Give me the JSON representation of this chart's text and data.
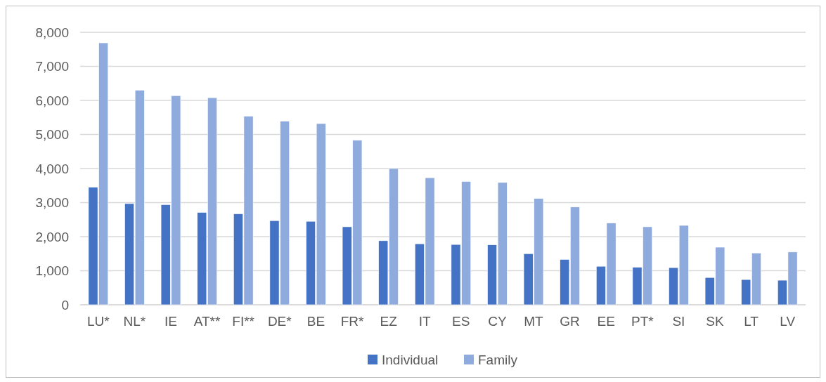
{
  "chart_data": {
    "type": "bar",
    "categories": [
      "LU*",
      "NL*",
      "IE",
      "AT**",
      "FI**",
      "DE*",
      "BE",
      "FR*",
      "EZ",
      "IT",
      "ES",
      "CY",
      "MT",
      "GR",
      "EE",
      "PT*",
      "SI",
      "SK",
      "LT",
      "LV"
    ],
    "series": [
      {
        "name": "Individual",
        "color": "#4472c4",
        "values": [
          3450,
          2970,
          2940,
          2710,
          2670,
          2470,
          2450,
          2290,
          1880,
          1790,
          1770,
          1760,
          1500,
          1330,
          1130,
          1100,
          1090,
          800,
          740,
          720
        ]
      },
      {
        "name": "Family",
        "color": "#8faadc",
        "values": [
          7690,
          6300,
          6140,
          6080,
          5540,
          5390,
          5320,
          4830,
          4000,
          3730,
          3620,
          3590,
          3120,
          2870,
          2400,
          2290,
          2330,
          1690,
          1520,
          1550
        ]
      }
    ],
    "ylim": [
      0,
      8000
    ],
    "yticks": [
      0,
      {
        "value": 1000,
        "label": "1,000"
      },
      {
        "value": 2000,
        "label": "2,000"
      },
      {
        "value": 3000,
        "label": "3,000"
      },
      {
        "value": 4000,
        "label": "4,000"
      },
      {
        "value": 5000,
        "label": "5,000"
      },
      {
        "value": 6000,
        "label": "6,000"
      },
      {
        "value": 7000,
        "label": "7,000"
      },
      {
        "value": 8000,
        "label": "8,000"
      }
    ],
    "grid": "y",
    "legend": "bottom"
  }
}
